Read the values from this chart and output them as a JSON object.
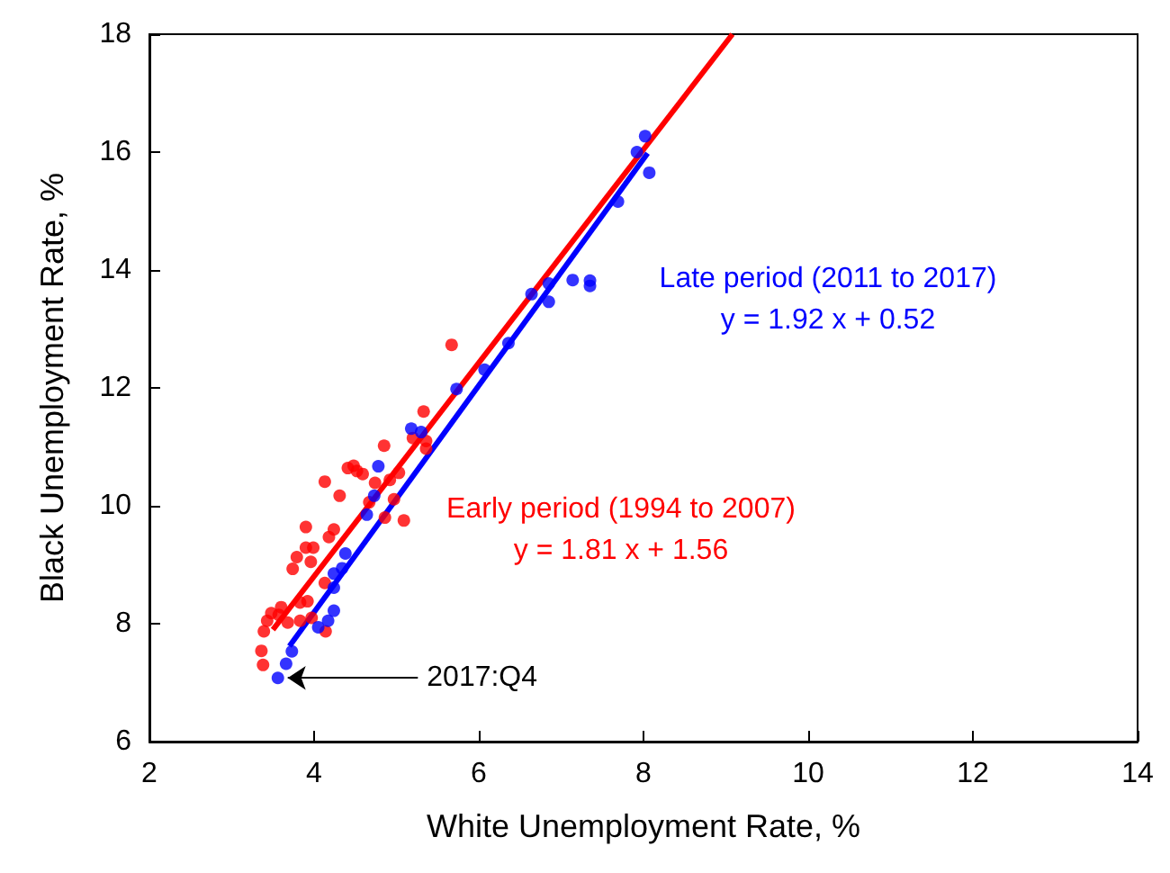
{
  "chart_data": {
    "type": "scatter",
    "xlabel": "White Unemployment Rate, %",
    "ylabel": "Black Unemployment Rate, %",
    "xlim": [
      2,
      14
    ],
    "xticks": [
      2,
      4,
      6,
      8,
      10,
      12,
      14
    ],
    "ylim": [
      6,
      18
    ],
    "yticks": [
      6,
      8,
      10,
      12,
      14,
      16,
      18
    ],
    "grid": false,
    "legend": false,
    "marker": "circle",
    "annotations": [
      {
        "text": "2017:Q4",
        "x": 3.56,
        "y": 7.08
      },
      "y = 1.81 x + 1.56",
      "y = 1.92 x + 0.52"
    ],
    "series": [
      {
        "name": "Early period (1994 to 2007)",
        "color": "#ff0000",
        "x": [
          5.67,
          5.33,
          5.36,
          5.36,
          5.2,
          4.85,
          4.41,
          4.48,
          4.52,
          4.59,
          4.13,
          4.31,
          4.74,
          4.92,
          5.03,
          4.67,
          4.86,
          4.97,
          5.09,
          3.9,
          4.24,
          4.18,
          3.9,
          3.99,
          3.79,
          3.96,
          3.74,
          4.13,
          3.83,
          3.92,
          3.6,
          3.57,
          3.97,
          3.68,
          3.43,
          3.83,
          3.39,
          4.14,
          3.36,
          3.38,
          3.48
        ],
        "values": [
          12.73,
          11.6,
          11.1,
          10.97,
          11.15,
          11.02,
          10.64,
          10.68,
          10.59,
          10.54,
          10.41,
          10.17,
          10.39,
          10.44,
          10.56,
          10.06,
          9.8,
          10.11,
          9.75,
          9.64,
          9.6,
          9.47,
          9.29,
          9.29,
          9.13,
          9.05,
          8.93,
          8.69,
          8.36,
          8.38,
          8.28,
          8.15,
          8.1,
          8.02,
          8.05,
          8.05,
          7.87,
          7.87,
          7.54,
          7.3,
          8.18
        ]
      },
      {
        "name": "Late period (2011 to 2017)",
        "color": "#0000ff",
        "x": [
          8.02,
          7.92,
          8.07,
          7.69,
          7.14,
          7.35,
          7.35,
          6.85,
          6.85,
          6.64,
          6.36,
          6.07,
          5.73,
          5.18,
          5.3,
          4.78,
          4.73,
          4.64,
          4.38,
          4.34,
          4.24,
          4.24,
          4.24,
          4.17,
          4.05,
          3.73,
          3.66,
          3.56
        ],
        "values": [
          16.27,
          16.0,
          15.65,
          15.16,
          13.83,
          13.82,
          13.73,
          13.77,
          13.46,
          13.59,
          12.76,
          12.31,
          11.98,
          11.31,
          11.25,
          10.67,
          10.17,
          9.85,
          9.19,
          8.94,
          8.85,
          8.61,
          8.22,
          8.05,
          7.94,
          7.53,
          7.32,
          7.08
        ]
      },
      {
        "type": "line",
        "marker": "none",
        "color": "#ff0000",
        "x": [
          3.5,
          9.08
        ],
        "values": [
          7.9,
          18.0
        ]
      },
      {
        "type": "line",
        "marker": "none",
        "color": "#0000ff",
        "x": [
          3.7,
          8.05
        ],
        "values": [
          7.62,
          15.98
        ]
      }
    ]
  }
}
